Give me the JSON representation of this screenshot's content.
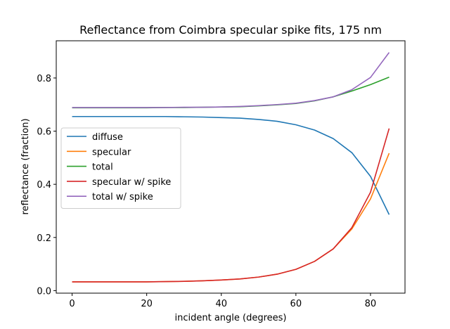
{
  "chart_data": {
    "type": "line",
    "title": "Reflectance from Coimbra specular spike fits, 175 nm",
    "xlabel": "incident angle (degrees)",
    "ylabel": "reflectance (fraction)",
    "xlim": [
      -4.25,
      89.25
    ],
    "ylim": [
      -0.0095,
      0.94
    ],
    "xticks": [
      0,
      20,
      40,
      60,
      80
    ],
    "yticks": [
      0.0,
      0.2,
      0.4,
      0.6,
      0.8
    ],
    "xtick_labels": [
      "0",
      "20",
      "40",
      "60",
      "80"
    ],
    "ytick_labels": [
      "0.0",
      "0.2",
      "0.4",
      "0.6",
      "0.8"
    ],
    "legend_position": "center-left",
    "grid": false,
    "x": [
      0,
      5,
      10,
      15,
      20,
      25,
      30,
      35,
      40,
      45,
      50,
      55,
      60,
      65,
      70,
      75,
      80,
      85
    ],
    "series": [
      {
        "name": "diffuse",
        "color": "#1f77b4",
        "values": [
          0.655,
          0.655,
          0.655,
          0.655,
          0.655,
          0.655,
          0.654,
          0.653,
          0.651,
          0.649,
          0.644,
          0.637,
          0.624,
          0.604,
          0.572,
          0.519,
          0.43,
          0.286
        ]
      },
      {
        "name": "specular",
        "color": "#ff7f0e",
        "values": [
          0.033,
          0.033,
          0.033,
          0.033,
          0.033,
          0.034,
          0.035,
          0.037,
          0.04,
          0.044,
          0.051,
          0.062,
          0.08,
          0.11,
          0.157,
          0.232,
          0.345,
          0.517
        ]
      },
      {
        "name": "total",
        "color": "#2ca02c",
        "values": [
          0.688,
          0.688,
          0.688,
          0.688,
          0.688,
          0.689,
          0.689,
          0.69,
          0.691,
          0.692,
          0.695,
          0.699,
          0.704,
          0.714,
          0.729,
          0.751,
          0.775,
          0.803
        ]
      },
      {
        "name": "specular w/ spike",
        "color": "#d62728",
        "values": [
          0.033,
          0.033,
          0.033,
          0.033,
          0.033,
          0.034,
          0.035,
          0.037,
          0.04,
          0.044,
          0.051,
          0.062,
          0.08,
          0.11,
          0.157,
          0.237,
          0.37,
          0.61
        ]
      },
      {
        "name": "total w/ spike",
        "color": "#9467bd",
        "values": [
          0.689,
          0.689,
          0.689,
          0.689,
          0.689,
          0.689,
          0.69,
          0.69,
          0.691,
          0.693,
          0.696,
          0.7,
          0.705,
          0.715,
          0.729,
          0.756,
          0.802,
          0.896
        ]
      }
    ]
  }
}
